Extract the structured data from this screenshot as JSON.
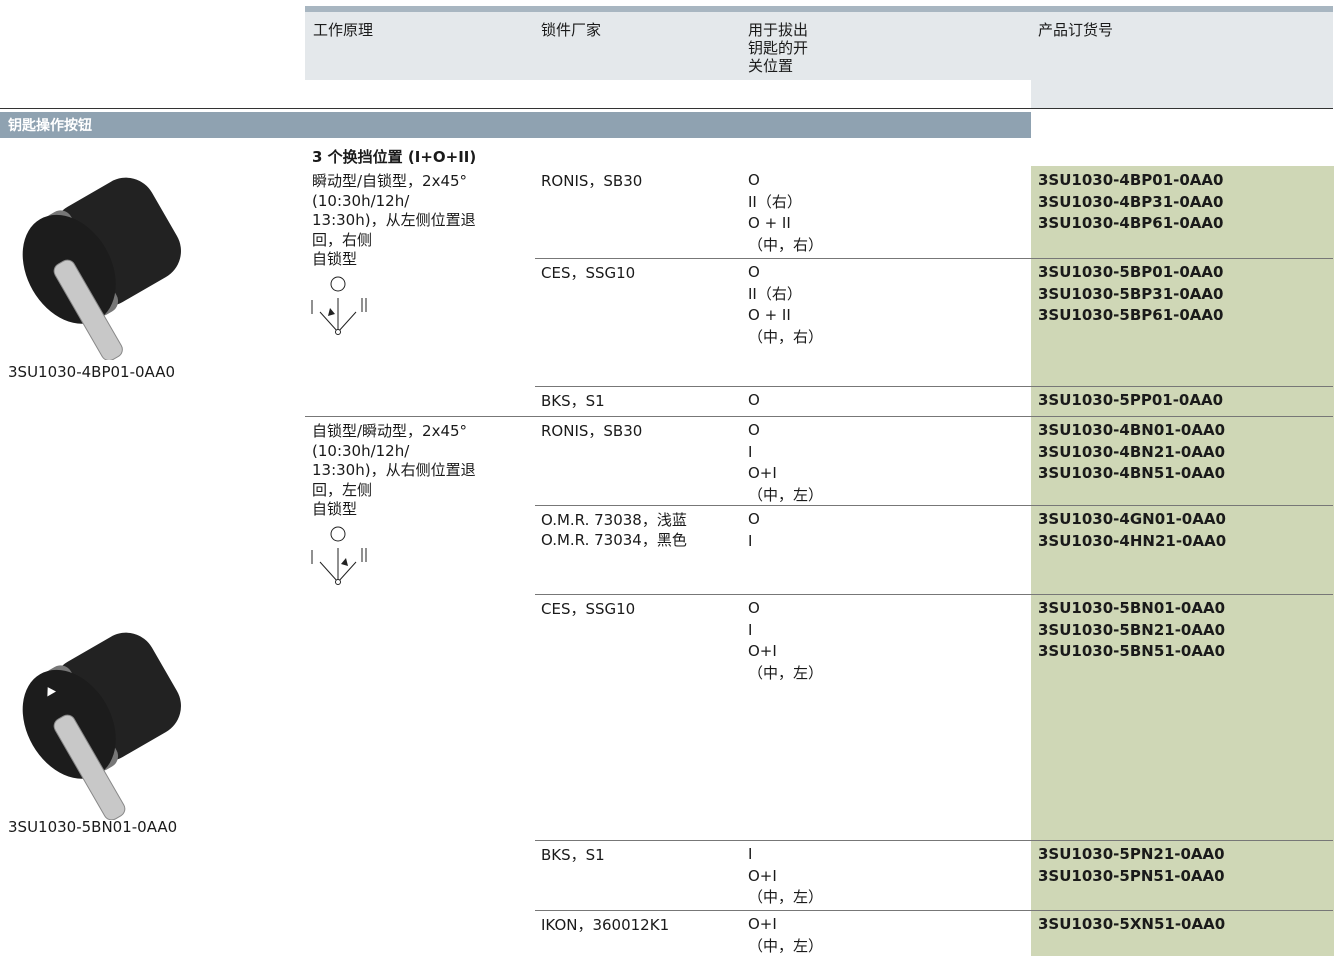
{
  "header": {
    "columns": [
      [
        "工作原理"
      ],
      [
        "锁件厂家"
      ],
      [
        "用于拔出",
        "钥匙的开",
        "关位置"
      ],
      [
        "产品订货号"
      ]
    ]
  },
  "section": "钥匙操作按钮",
  "subheading": "3 个换挡位置 (I+O+II)",
  "images": [
    {
      "caption": "3SU1030-4BP01-0AA0"
    },
    {
      "caption": "3SU1030-5BN01-0AA0"
    }
  ],
  "groups": [
    {
      "description": [
        "瞬动型/自锁型，2x45°",
        "(10:30h/12h/",
        "13:30h)，从左侧位置退",
        "回，右侧",
        "自锁型"
      ],
      "rows": [
        {
          "manufacturer": [
            "RONIS，SB30"
          ],
          "positions": [
            "O",
            "II（右）",
            "O + II",
            "（中，右）"
          ],
          "order_numbers": [
            "3SU1030-4BP01-0AA0",
            "3SU1030-4BP31-0AA0",
            "3SU1030-4BP61-0AA0"
          ]
        },
        {
          "manufacturer": [
            "CES，SSG10"
          ],
          "positions": [
            "O",
            "II（右）",
            "O + II",
            "（中，右）"
          ],
          "order_numbers": [
            "3SU1030-5BP01-0AA0",
            "3SU1030-5BP31-0AA0",
            "3SU1030-5BP61-0AA0"
          ]
        },
        {
          "manufacturer": [
            "BKS，S1"
          ],
          "positions": [
            "O"
          ],
          "order_numbers": [
            "3SU1030-5PP01-0AA0"
          ]
        }
      ]
    },
    {
      "description": [
        "自锁型/瞬动型，2x45°",
        "(10:30h/12h/",
        "13:30h)，从右侧位置退",
        "回，左侧",
        "自锁型"
      ],
      "rows": [
        {
          "manufacturer": [
            "RONIS，SB30"
          ],
          "positions": [
            "O",
            "I",
            "O+I",
            "（中，左）"
          ],
          "order_numbers": [
            "3SU1030-4BN01-0AA0",
            "3SU1030-4BN21-0AA0",
            "3SU1030-4BN51-0AA0"
          ]
        },
        {
          "manufacturer": [
            "O.M.R. 73038，浅蓝",
            "O.M.R. 73034，黑色"
          ],
          "positions": [
            "O",
            "I"
          ],
          "order_numbers": [
            "3SU1030-4GN01-0AA0",
            "3SU1030-4HN21-0AA0"
          ]
        },
        {
          "manufacturer": [
            "CES，SSG10"
          ],
          "positions": [
            "O",
            "I",
            "O+I",
            "（中，左）"
          ],
          "order_numbers": [
            "3SU1030-5BN01-0AA0",
            "3SU1030-5BN21-0AA0",
            "3SU1030-5BN51-0AA0"
          ]
        },
        {
          "manufacturer": [
            "BKS，S1"
          ],
          "positions": [
            "I",
            "O+I",
            "（中，左）"
          ],
          "order_numbers": [
            "3SU1030-5PN21-0AA0",
            "3SU1030-5PN51-0AA0"
          ]
        },
        {
          "manufacturer": [
            "IKON，360012K1"
          ],
          "positions": [
            "O+I",
            "（中，左）"
          ],
          "order_numbers": [
            "3SU1030-5XN51-0AA0"
          ]
        }
      ]
    }
  ]
}
